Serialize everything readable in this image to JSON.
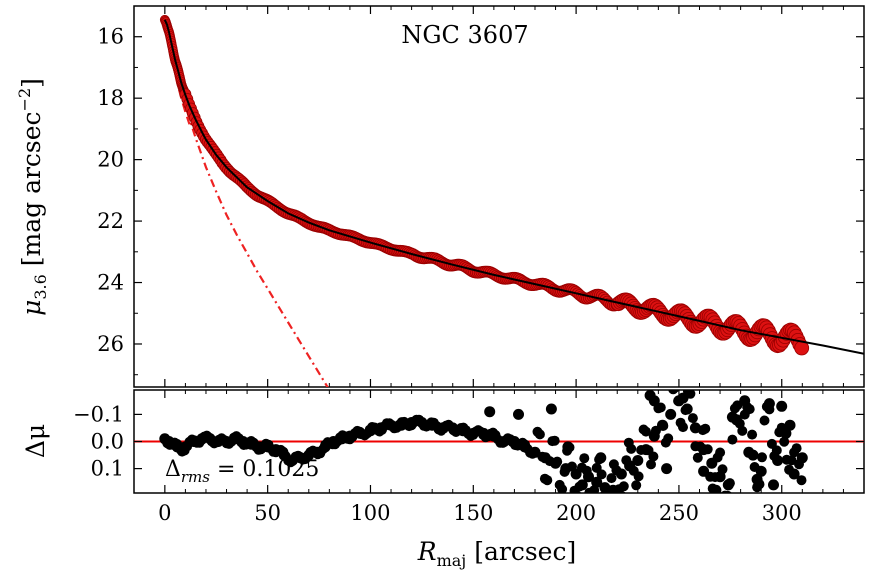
{
  "chart_data": [
    {
      "type": "scatter",
      "title": "NGC 3607",
      "xlabel_base": "R",
      "xlabel_sub": "maj",
      "xlabel_units": "[arcsec]",
      "ylabel_base": "μ",
      "ylabel_sub": "3.6",
      "ylabel_units": "[mag arcsec",
      "ylabel_exp": "−2",
      "ylabel_close": "]",
      "xlim": [
        -15,
        340
      ],
      "ylim": [
        27.4,
        15.0
      ],
      "y_inverted": true,
      "xticks": [
        0,
        50,
        100,
        150,
        200,
        250,
        300
      ],
      "yticks": [
        16,
        18,
        20,
        22,
        24,
        26
      ],
      "colors": {
        "data": "#dd1111",
        "data_edge": "#990000",
        "model": "#000000",
        "component": "#ee2222"
      },
      "series": [
        {
          "name": "data",
          "style": "markers",
          "x": [
            0,
            0.5,
            1,
            1.5,
            2,
            2.5,
            3,
            3.5,
            4,
            4.5,
            5,
            6,
            7,
            8,
            9,
            10,
            12,
            14,
            16,
            18,
            20,
            24,
            28,
            32,
            36,
            40,
            45,
            50,
            55,
            60,
            65,
            70,
            75,
            80,
            85,
            90,
            95,
            100,
            105,
            110,
            115,
            120,
            125,
            130,
            135,
            140,
            145,
            150,
            155,
            160,
            165,
            170,
            175,
            180,
            185,
            190,
            195,
            200,
            205,
            210,
            215,
            220,
            225,
            230,
            235,
            240,
            245,
            250,
            255,
            260,
            265,
            270,
            275,
            280,
            285,
            290,
            295,
            300,
            305,
            310
          ],
          "y": [
            15.45,
            15.5,
            15.6,
            15.72,
            15.85,
            16.0,
            16.15,
            16.3,
            16.45,
            16.6,
            16.75,
            17.0,
            17.25,
            17.5,
            17.7,
            17.9,
            18.25,
            18.55,
            18.85,
            19.1,
            19.35,
            19.75,
            20.1,
            20.4,
            20.65,
            20.9,
            21.15,
            21.35,
            21.55,
            21.75,
            21.9,
            22.05,
            22.2,
            22.3,
            22.4,
            22.5,
            22.6,
            22.7,
            22.8,
            22.9,
            22.98,
            23.07,
            23.15,
            23.25,
            23.33,
            23.42,
            23.5,
            23.6,
            23.67,
            23.75,
            23.82,
            23.9,
            23.98,
            24.05,
            24.12,
            24.2,
            24.27,
            24.35,
            24.42,
            24.5,
            24.57,
            24.65,
            24.72,
            24.8,
            24.87,
            24.95,
            25.02,
            25.1,
            25.17,
            25.25,
            25.32,
            25.4,
            25.47,
            25.55,
            25.6,
            25.66,
            25.72,
            25.8,
            25.85,
            25.9
          ]
        },
        {
          "name": "model",
          "style": "solid",
          "x": [
            0,
            1,
            2,
            3,
            4,
            5,
            6,
            8,
            10,
            12,
            15,
            18,
            20,
            25,
            30,
            40,
            50,
            60,
            70,
            80,
            90,
            100,
            120,
            140,
            160,
            180,
            200,
            220,
            240,
            260,
            280,
            300,
            320,
            340
          ],
          "y": [
            15.45,
            15.6,
            15.85,
            16.15,
            16.45,
            16.75,
            17.0,
            17.5,
            17.9,
            18.25,
            18.7,
            19.1,
            19.35,
            19.85,
            20.25,
            20.9,
            21.35,
            21.75,
            22.05,
            22.3,
            22.5,
            22.7,
            23.07,
            23.42,
            23.75,
            24.05,
            24.35,
            24.65,
            24.95,
            25.25,
            25.55,
            25.8,
            26.05,
            26.32
          ]
        },
        {
          "name": "inner-component",
          "style": "dashed",
          "x": [
            0,
            1,
            2,
            3,
            4,
            5,
            6,
            8,
            10,
            12
          ],
          "y": [
            15.5,
            15.75,
            16.1,
            16.5,
            16.85,
            17.2,
            17.5,
            18.0,
            18.45,
            18.85
          ]
        },
        {
          "name": "outer-component",
          "style": "dashdot",
          "x": [
            0,
            5,
            10,
            15,
            20,
            25,
            30,
            35,
            40,
            45,
            50,
            55,
            60,
            65,
            70,
            75,
            80
          ],
          "y": [
            15.6,
            17.0,
            18.25,
            19.3,
            20.25,
            21.05,
            21.8,
            22.45,
            23.05,
            23.65,
            24.2,
            24.75,
            25.3,
            25.85,
            26.4,
            26.95,
            27.5
          ]
        }
      ]
    },
    {
      "type": "scatter",
      "xlim": [
        -15,
        340
      ],
      "ylim": [
        0.19,
        -0.19
      ],
      "y_inverted": true,
      "xticks": [
        0,
        50,
        100,
        150,
        200,
        250,
        300
      ],
      "yticks": [
        -0.1,
        0.0,
        0.1
      ],
      "ytick_labels": [
        "−0.1",
        "0.0",
        "0.1"
      ],
      "ylabel": "Δμ",
      "annotation_base": "Δ",
      "annotation_sub": "rms",
      "annotation_value": " = 0.1025",
      "reference_line": {
        "y": 0,
        "color": "#ee0000"
      },
      "colors": {
        "points": "#000000"
      },
      "series": [
        {
          "name": "residuals",
          "x": [
            0,
            2,
            4,
            6,
            8,
            10,
            14,
            18,
            22,
            26,
            30,
            34,
            38,
            42,
            46,
            50,
            54,
            58,
            62,
            66,
            70,
            74,
            78,
            82,
            86,
            90,
            95,
            100,
            105,
            110,
            115,
            120,
            125,
            130,
            135,
            140,
            145,
            150,
            155,
            160,
            165,
            170,
            175,
            180,
            185,
            190,
            195,
            200,
            203,
            206,
            210,
            214,
            218,
            222,
            226,
            230,
            234,
            238,
            242,
            246,
            250,
            254,
            258,
            262,
            266,
            270,
            274,
            278,
            282,
            286,
            290,
            294,
            298,
            302,
            306,
            310,
            158,
            172,
            188,
            196,
            212,
            236,
            244,
            252,
            268,
            276,
            288,
            296,
            304,
            238,
            262,
            284,
            300
          ],
          "y": [
            -0.01,
            0.0,
            0.01,
            0.02,
            0.03,
            0.02,
            0.0,
            -0.01,
            -0.01,
            0.0,
            0.0,
            -0.01,
            0.0,
            0.01,
            0.02,
            0.02,
            0.03,
            0.05,
            0.07,
            0.06,
            0.05,
            0.04,
            0.02,
            0.0,
            -0.01,
            -0.02,
            -0.03,
            -0.04,
            -0.05,
            -0.06,
            -0.06,
            -0.07,
            -0.07,
            -0.06,
            -0.05,
            -0.05,
            -0.04,
            -0.03,
            -0.03,
            -0.02,
            0.0,
            0.0,
            0.02,
            0.04,
            0.06,
            0.08,
            0.1,
            0.12,
            0.16,
            0.13,
            0.15,
            0.17,
            0.18,
            0.12,
            0.09,
            0.07,
            0.03,
            -0.02,
            -0.06,
            -0.1,
            -0.15,
            -0.12,
            -0.05,
            0.03,
            0.08,
            0.13,
            0.16,
            -0.08,
            -0.15,
            0.05,
            0.11,
            -0.14,
            0.07,
            -0.03,
            0.12,
            0.06,
            -0.11,
            -0.1,
            -0.12,
            0.02,
            0.06,
            -0.17,
            0.1,
            -0.16,
            0.18,
            -0.09,
            0.14,
            0.16,
            -0.06,
            -0.15,
            0.11,
            0.04,
            -0.13
          ]
        }
      ]
    }
  ]
}
